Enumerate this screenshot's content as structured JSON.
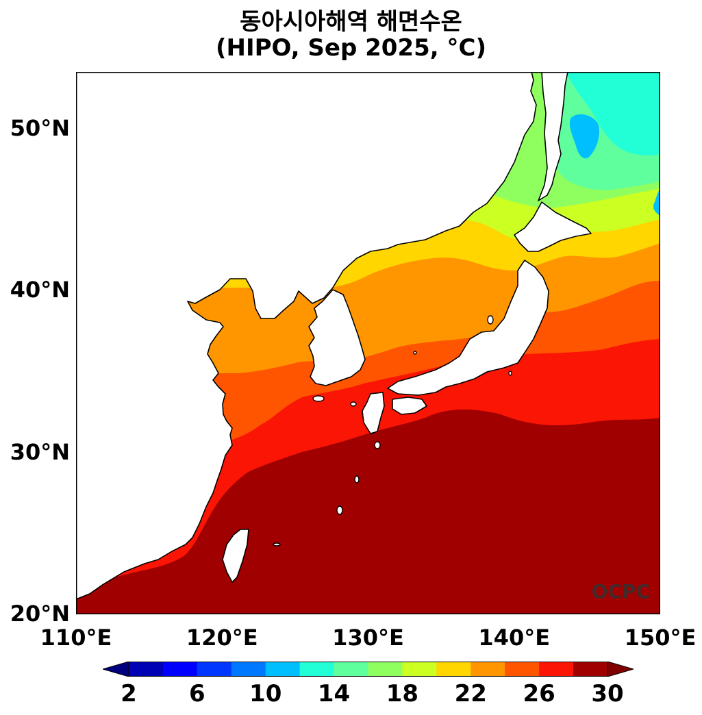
{
  "title": {
    "line1": "동아시아해역 해면수온",
    "line2": "(HIPO, Sep 2025, °C)"
  },
  "map": {
    "lon_range": [
      110,
      150
    ],
    "lat_range": [
      20,
      53.5
    ],
    "y_ticks": [
      "20°N",
      "30°N",
      "40°N",
      "50°N"
    ],
    "x_ticks": [
      "110°E",
      "120°E",
      "130°E",
      "140°E",
      "150°E"
    ],
    "land_color": "#ffffff",
    "coast_color": "#000000",
    "watermark": "OCPC"
  },
  "colorbar": {
    "tick_labels": [
      "2",
      "6",
      "10",
      "14",
      "18",
      "22",
      "26",
      "30"
    ],
    "colors": [
      "#0000b4",
      "#0000ff",
      "#0037ff",
      "#0078ff",
      "#00bfff",
      "#22ffd6",
      "#5fff9e",
      "#8fff60",
      "#ccff22",
      "#ffd600",
      "#ff9600",
      "#ff5500",
      "#fa1505",
      "#a00000"
    ],
    "min_arrow_color": "#00007f",
    "max_arrow_color": "#800000"
  }
}
